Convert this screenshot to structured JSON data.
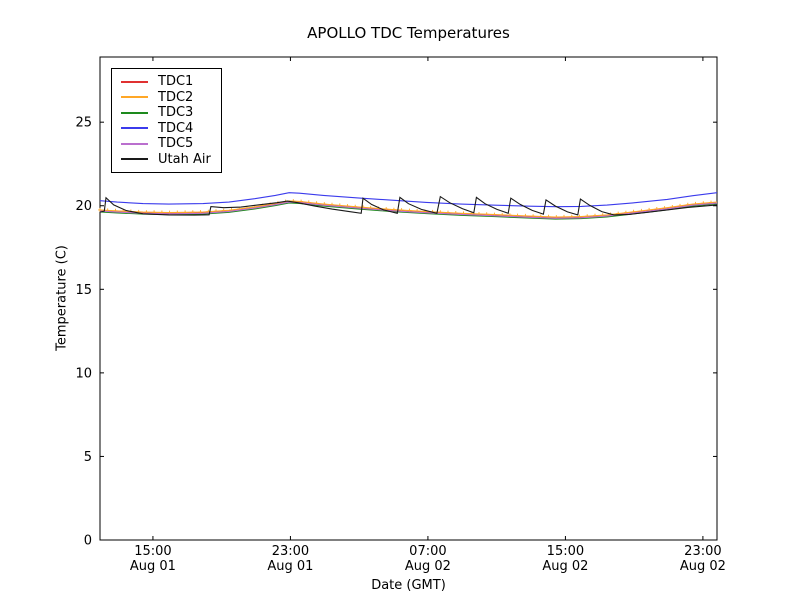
{
  "chart_data": {
    "type": "line",
    "title": "APOLLO TDC Temperatures",
    "xlabel": "Date (GMT)",
    "ylabel": "Temperature (C)",
    "grid": false,
    "legend_position": "upper left",
    "x_hours_origin": "left edge ≈ Aug 01 12:00 GMT",
    "x_range_hours": [
      0,
      35.9
    ],
    "y_range": [
      0,
      28.9
    ],
    "y_ticks": [
      0,
      5,
      10,
      15,
      20,
      25
    ],
    "x_ticks": [
      {
        "hour": 3.08,
        "time": "15:00",
        "date": "Aug 01"
      },
      {
        "hour": 11.08,
        "time": "23:00",
        "date": "Aug 01"
      },
      {
        "hour": 19.08,
        "time": "07:00",
        "date": "Aug 02"
      },
      {
        "hour": 27.08,
        "time": "15:00",
        "date": "Aug 02"
      },
      {
        "hour": 35.08,
        "time": "23:00",
        "date": "Aug 02"
      }
    ],
    "series": [
      {
        "name": "TDC1",
        "color": "#e03131",
        "marker": "none",
        "points": [
          [
            0,
            19.7
          ],
          [
            1,
            19.64
          ],
          [
            2.5,
            19.57
          ],
          [
            4,
            19.54
          ],
          [
            6,
            19.57
          ],
          [
            7.5,
            19.68
          ],
          [
            9,
            19.88
          ],
          [
            10.2,
            20.08
          ],
          [
            11,
            20.24
          ],
          [
            11.6,
            20.21
          ],
          [
            13,
            20.05
          ],
          [
            15,
            19.88
          ],
          [
            17,
            19.72
          ],
          [
            19,
            19.6
          ],
          [
            21,
            19.5
          ],
          [
            23,
            19.42
          ],
          [
            25,
            19.33
          ],
          [
            26.5,
            19.27
          ],
          [
            28,
            19.3
          ],
          [
            29.5,
            19.4
          ],
          [
            31,
            19.58
          ],
          [
            33,
            19.83
          ],
          [
            34.5,
            20.05
          ],
          [
            35.9,
            20.18
          ]
        ]
      },
      {
        "name": "TDC2",
        "color": "#ffa726",
        "marker": "plus",
        "points": [
          [
            0,
            19.75
          ],
          [
            1,
            19.69
          ],
          [
            2.5,
            19.62
          ],
          [
            4,
            19.59
          ],
          [
            6,
            19.62
          ],
          [
            7.5,
            19.73
          ],
          [
            9,
            19.93
          ],
          [
            10.2,
            20.13
          ],
          [
            11,
            20.29
          ],
          [
            11.6,
            20.26
          ],
          [
            13,
            20.1
          ],
          [
            15,
            19.93
          ],
          [
            17,
            19.77
          ],
          [
            19,
            19.65
          ],
          [
            21,
            19.55
          ],
          [
            23,
            19.47
          ],
          [
            25,
            19.38
          ],
          [
            26.5,
            19.32
          ],
          [
            28,
            19.35
          ],
          [
            29.5,
            19.45
          ],
          [
            31,
            19.63
          ],
          [
            33,
            19.88
          ],
          [
            34.5,
            20.1
          ],
          [
            35.9,
            20.22
          ]
        ]
      },
      {
        "name": "TDC3",
        "color": "#1d8a1d",
        "marker": "none",
        "points": [
          [
            0,
            19.63
          ],
          [
            1,
            19.57
          ],
          [
            2.5,
            19.5
          ],
          [
            4,
            19.47
          ],
          [
            6,
            19.5
          ],
          [
            7.5,
            19.61
          ],
          [
            9,
            19.81
          ],
          [
            10.2,
            20.01
          ],
          [
            11,
            20.17
          ],
          [
            11.6,
            20.14
          ],
          [
            13,
            19.98
          ],
          [
            15,
            19.81
          ],
          [
            17,
            19.65
          ],
          [
            19,
            19.53
          ],
          [
            21,
            19.43
          ],
          [
            23,
            19.35
          ],
          [
            25,
            19.26
          ],
          [
            26.5,
            19.2
          ],
          [
            28,
            19.23
          ],
          [
            29.5,
            19.33
          ],
          [
            31,
            19.51
          ],
          [
            33,
            19.76
          ],
          [
            34.5,
            19.98
          ],
          [
            35.9,
            20.12
          ]
        ]
      },
      {
        "name": "TDC4",
        "color": "#3b3bec",
        "marker": "none",
        "points": [
          [
            0,
            20.3
          ],
          [
            1,
            20.22
          ],
          [
            2.5,
            20.13
          ],
          [
            4,
            20.1
          ],
          [
            6,
            20.13
          ],
          [
            7.5,
            20.22
          ],
          [
            9,
            20.42
          ],
          [
            10.2,
            20.62
          ],
          [
            11,
            20.78
          ],
          [
            11.6,
            20.75
          ],
          [
            13,
            20.62
          ],
          [
            15,
            20.47
          ],
          [
            17,
            20.33
          ],
          [
            19,
            20.2
          ],
          [
            21,
            20.1
          ],
          [
            23,
            20.03
          ],
          [
            25,
            19.97
          ],
          [
            26.5,
            19.94
          ],
          [
            28,
            19.96
          ],
          [
            29.5,
            20.04
          ],
          [
            31,
            20.17
          ],
          [
            33,
            20.38
          ],
          [
            34.5,
            20.6
          ],
          [
            35.9,
            20.78
          ]
        ]
      },
      {
        "name": "TDC5",
        "color": "#ba6fce",
        "marker": "none",
        "points": [
          [
            0,
            19.68
          ],
          [
            1,
            19.62
          ],
          [
            2.5,
            19.55
          ],
          [
            4,
            19.52
          ],
          [
            6,
            19.55
          ],
          [
            7.5,
            19.66
          ],
          [
            9,
            19.86
          ],
          [
            10.2,
            20.06
          ],
          [
            11,
            20.22
          ],
          [
            11.6,
            20.19
          ],
          [
            13,
            20.03
          ],
          [
            15,
            19.86
          ],
          [
            17,
            19.7
          ],
          [
            19,
            19.58
          ],
          [
            21,
            19.48
          ],
          [
            23,
            19.4
          ],
          [
            25,
            19.31
          ],
          [
            26.5,
            19.25
          ],
          [
            28,
            19.28
          ],
          [
            29.5,
            19.38
          ],
          [
            31,
            19.56
          ],
          [
            33,
            19.81
          ],
          [
            34.5,
            20.03
          ],
          [
            35.9,
            20.16
          ]
        ]
      },
      {
        "name": "Utah Air",
        "color": "#1a1a1a",
        "marker": "none",
        "points": [
          [
            0,
            19.62
          ],
          [
            0.25,
            19.68
          ],
          [
            0.35,
            20.48
          ],
          [
            0.8,
            20.05
          ],
          [
            1.5,
            19.72
          ],
          [
            2.5,
            19.52
          ],
          [
            4,
            19.45
          ],
          [
            5.5,
            19.44
          ],
          [
            6.35,
            19.46
          ],
          [
            6.45,
            19.95
          ],
          [
            7.2,
            19.88
          ],
          [
            8.2,
            19.92
          ],
          [
            9.2,
            20.05
          ],
          [
            10.3,
            20.18
          ],
          [
            10.9,
            20.28
          ],
          [
            11.5,
            20.18
          ],
          [
            12.5,
            19.98
          ],
          [
            13.5,
            19.8
          ],
          [
            14.5,
            19.65
          ],
          [
            15.2,
            19.55
          ],
          [
            15.3,
            20.45
          ],
          [
            15.8,
            20.08
          ],
          [
            16.5,
            19.75
          ],
          [
            17.3,
            19.55
          ],
          [
            17.45,
            20.5
          ],
          [
            17.95,
            20.12
          ],
          [
            18.7,
            19.78
          ],
          [
            19.6,
            19.55
          ],
          [
            19.8,
            20.55
          ],
          [
            20.35,
            20.18
          ],
          [
            21.1,
            19.82
          ],
          [
            21.75,
            19.58
          ],
          [
            21.9,
            20.5
          ],
          [
            22.4,
            20.12
          ],
          [
            23.1,
            19.78
          ],
          [
            23.75,
            19.55
          ],
          [
            23.9,
            20.45
          ],
          [
            24.45,
            20.08
          ],
          [
            25.15,
            19.72
          ],
          [
            25.8,
            19.5
          ],
          [
            25.95,
            20.35
          ],
          [
            26.5,
            19.98
          ],
          [
            27.2,
            19.63
          ],
          [
            27.8,
            19.45
          ],
          [
            27.95,
            20.4
          ],
          [
            28.5,
            20.02
          ],
          [
            29.2,
            19.65
          ],
          [
            29.9,
            19.45
          ],
          [
            30.8,
            19.48
          ],
          [
            31.8,
            19.6
          ],
          [
            33,
            19.75
          ],
          [
            34.2,
            19.9
          ],
          [
            35.9,
            20.05
          ]
        ]
      }
    ]
  }
}
